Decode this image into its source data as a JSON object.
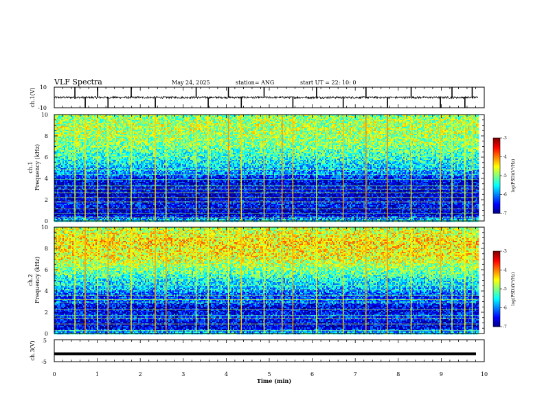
{
  "header": {
    "title": "VLF Spectra",
    "date": "May 24, 2025",
    "station": "station= ANG",
    "start": "start  UT  =    22: 10: 0"
  },
  "chart_data": [
    {
      "type": "line",
      "name": "ch1_waveform",
      "ylabel": "ch.1(V)",
      "ylim": [
        -10,
        10
      ],
      "yticks": [
        "10",
        "-10"
      ],
      "xlim": [
        0,
        10
      ],
      "baseline": 0,
      "noise_amplitude": 2,
      "spikes_min": [
        0.48,
        0.72,
        1.01,
        1.25,
        1.79,
        2.35,
        3.3,
        3.58,
        4.05,
        4.35,
        4.88,
        5.55,
        6.1,
        6.72,
        7.25,
        7.75,
        8.3,
        8.98,
        9.25,
        9.55,
        9.72
      ]
    },
    {
      "type": "heatmap",
      "name": "ch1_spectrogram",
      "ylabel_top": "ch.1",
      "ylabel": "Frequency (kHz)",
      "ylim": [
        0,
        10
      ],
      "yticks": [
        "0",
        "2",
        "4",
        "6",
        "8",
        "10"
      ],
      "xlim": [
        0,
        9.85
      ],
      "colorbar": {
        "label": "log(PSD)(V²/Hz)",
        "min": -7,
        "max": -3,
        "ticks": [
          "-3",
          "-4",
          "-5",
          "-6",
          "-7"
        ]
      },
      "intensity_profile": {
        "freq_khz": [
          0,
          0.5,
          1,
          1.5,
          2,
          2.5,
          3,
          3.5,
          4,
          4.5,
          5,
          5.5,
          6,
          6.5,
          7,
          7.5,
          8,
          8.5,
          9,
          9.5,
          10
        ],
        "log_psd": [
          -5.4,
          -6.6,
          -6.7,
          -6.4,
          -6.6,
          -6.7,
          -6.5,
          -6.6,
          -6.4,
          -5.9,
          -5.7,
          -5.5,
          -5.3,
          -5.2,
          -5.0,
          -4.9,
          -4.9,
          -4.8,
          -4.8,
          -4.9,
          -5.0
        ]
      },
      "tones_khz": [
        0.3,
        0.7,
        1.15,
        1.8,
        2.2,
        2.65,
        3.0,
        3.3,
        3.9,
        4.35,
        4.8
      ],
      "sferics_min": [
        0.48,
        0.72,
        1.01,
        1.25,
        1.79,
        2.35,
        2.6,
        3.3,
        3.58,
        4.05,
        4.35,
        4.88,
        5.3,
        5.55,
        6.1,
        6.72,
        7.25,
        7.75,
        8.3,
        8.98,
        9.25,
        9.55,
        9.72
      ]
    },
    {
      "type": "heatmap",
      "name": "ch2_spectrogram",
      "ylabel_top": "ch.2",
      "ylabel": "Frequency (kHz)",
      "ylim": [
        0,
        10
      ],
      "yticks": [
        "0",
        "2",
        "4",
        "6",
        "8",
        "10"
      ],
      "xlim": [
        0,
        9.85
      ],
      "colorbar": {
        "label": "log(PSD)(V²/Hz)",
        "min": -7,
        "max": -3,
        "ticks": [
          "-3",
          "-4",
          "-5",
          "-6",
          "-7"
        ]
      },
      "intensity_profile": {
        "freq_khz": [
          0,
          0.5,
          1,
          1.5,
          2,
          2.5,
          3,
          3.5,
          4,
          4.5,
          5,
          5.5,
          6,
          6.5,
          7,
          7.5,
          8,
          8.5,
          9,
          9.5,
          10
        ],
        "log_psd": [
          -5.5,
          -6.6,
          -6.6,
          -6.3,
          -6.5,
          -6.6,
          -6.1,
          -6.3,
          -5.9,
          -5.6,
          -5.5,
          -5.2,
          -5.0,
          -4.8,
          -4.6,
          -4.5,
          -4.5,
          -4.4,
          -4.5,
          -4.6,
          -4.8
        ]
      },
      "tones_khz": [
        0.3,
        0.9,
        1.4,
        1.7,
        2.25,
        2.9,
        3.2,
        3.6,
        4.1,
        4.5
      ],
      "sferics_min": [
        0.48,
        0.72,
        1.01,
        1.25,
        1.79,
        2.35,
        2.6,
        3.3,
        3.58,
        4.05,
        4.35,
        4.88,
        5.3,
        5.55,
        6.1,
        6.72,
        7.25,
        7.75,
        8.3,
        8.98,
        9.25,
        9.55,
        9.72
      ]
    },
    {
      "type": "line",
      "name": "ch3_waveform",
      "ylabel": "ch.3(V)",
      "ylim": [
        -5,
        5
      ],
      "yticks": [
        "5",
        "-5"
      ],
      "xlim": [
        0,
        10
      ],
      "level": -1.4,
      "xlabel": "Time  (min)",
      "xticks": [
        "0",
        "1",
        "2",
        "3",
        "4",
        "5",
        "6",
        "7",
        "8",
        "9",
        "10"
      ]
    }
  ]
}
